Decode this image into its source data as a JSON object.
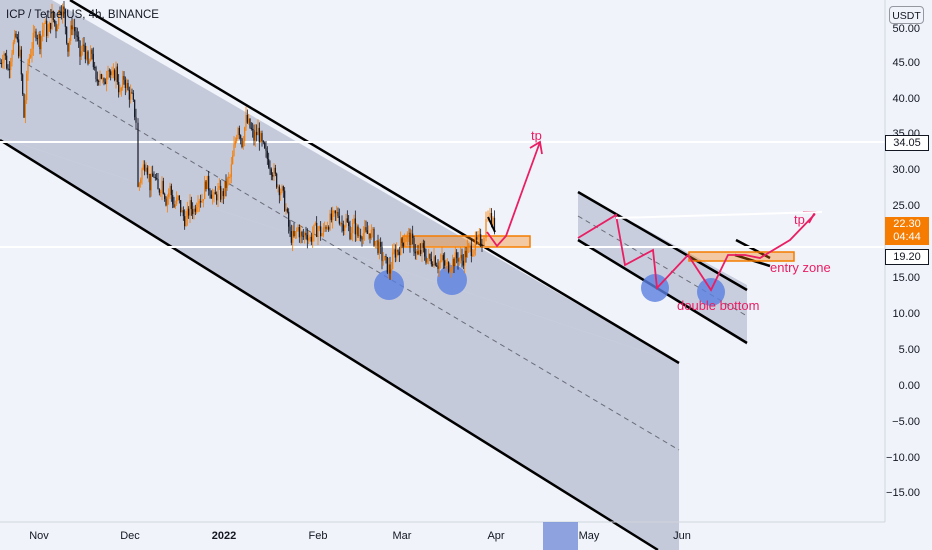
{
  "header": {
    "symbol": "ICP / TetherUS, 4h, BINANCE",
    "currency": "USDT"
  },
  "price_scale": {
    "ticks": [
      "50.00",
      "45.00",
      "40.00",
      "35.00",
      "30.00",
      "25.00",
      "20.00",
      "15.00",
      "10.00",
      "5.00",
      "0.00",
      "−5.00",
      "−10.00",
      "−15.00"
    ],
    "level_upper": "34.05",
    "current_price": "22.30",
    "countdown": "04:44",
    "level_lower": "19.20"
  },
  "time_scale": {
    "ticks": [
      "Nov",
      "Dec",
      "2022",
      "Feb",
      "Mar",
      "Apr",
      "May",
      "Jun"
    ]
  },
  "annotations": {
    "tp_main": "tp",
    "tp_projection": "tp",
    "double_bottom": "double bottom",
    "entry_zone": "entry zone"
  },
  "colors": {
    "background": "#f0f3fa",
    "channel_fill": "#a9afc6",
    "channel_line": "#000000",
    "level_line": "#ffffff",
    "up_candle": "#f57c00",
    "down_candle": "#131722",
    "zone": "#f57c00",
    "circle": "#5b7fe0",
    "path": "#e91e63",
    "current_tag": "#f57c00"
  },
  "chart_data": {
    "type": "candlestick",
    "symbol": "ICP/USDT",
    "interval": "4h",
    "y_range": [
      -18,
      52
    ],
    "horizontal_levels": [
      34.05,
      19.2
    ],
    "current_price": 22.3,
    "price_path": [
      [
        0,
        45.0
      ],
      [
        4,
        46.5
      ],
      [
        8,
        44.0
      ],
      [
        12,
        47.0
      ],
      [
        16,
        48.5
      ],
      [
        20,
        46.0
      ],
      [
        24,
        37.5
      ],
      [
        28,
        45.0
      ],
      [
        32,
        47.5
      ],
      [
        36,
        49.5
      ],
      [
        40,
        48.0
      ],
      [
        44,
        50.5
      ],
      [
        48,
        49.0
      ],
      [
        52,
        51.5
      ],
      [
        56,
        50.0
      ],
      [
        60,
        53.0
      ],
      [
        64,
        52.0
      ],
      [
        68,
        47.0
      ],
      [
        72,
        50.5
      ],
      [
        76,
        49.0
      ],
      [
        80,
        46.0
      ],
      [
        84,
        47.5
      ],
      [
        88,
        44.5
      ],
      [
        92,
        46.5
      ],
      [
        96,
        42.0
      ],
      [
        100,
        44.0
      ],
      [
        104,
        41.5
      ],
      [
        108,
        45.0
      ],
      [
        112,
        42.5
      ],
      [
        116,
        44.0
      ],
      [
        120,
        40.5
      ],
      [
        124,
        43.0
      ],
      [
        128,
        41.0
      ],
      [
        132,
        40.0
      ],
      [
        136,
        37.0
      ],
      [
        138,
        27.5
      ],
      [
        142,
        30.0
      ],
      [
        146,
        31.5
      ],
      [
        150,
        28.0
      ],
      [
        154,
        29.5
      ],
      [
        158,
        27.0
      ],
      [
        162,
        28.5
      ],
      [
        166,
        26.0
      ],
      [
        170,
        27.5
      ],
      [
        174,
        25.0
      ],
      [
        178,
        26.0
      ],
      [
        182,
        24.0
      ],
      [
        186,
        23.0
      ],
      [
        190,
        25.0
      ],
      [
        194,
        24.5
      ],
      [
        198,
        26.5
      ],
      [
        202,
        26.0
      ],
      [
        206,
        28.5
      ],
      [
        210,
        27.5
      ],
      [
        214,
        26.0
      ],
      [
        218,
        27.0
      ],
      [
        222,
        26.5
      ],
      [
        226,
        28.0
      ],
      [
        230,
        29.0
      ],
      [
        234,
        33.0
      ],
      [
        238,
        36.5
      ],
      [
        242,
        34.0
      ],
      [
        246,
        37.0
      ],
      [
        250,
        36.0
      ],
      [
        254,
        34.5
      ],
      [
        258,
        35.5
      ],
      [
        262,
        33.5
      ],
      [
        266,
        32.0
      ],
      [
        270,
        31.0
      ],
      [
        274,
        29.5
      ],
      [
        278,
        28.0
      ],
      [
        282,
        27.0
      ],
      [
        286,
        24.5
      ],
      [
        290,
        21.0
      ],
      [
        294,
        20.5
      ],
      [
        298,
        22.0
      ],
      [
        302,
        20.5
      ],
      [
        306,
        21.5
      ],
      [
        310,
        20.5
      ],
      [
        314,
        21.5
      ],
      [
        318,
        22.0
      ],
      [
        322,
        21.0
      ],
      [
        326,
        22.5
      ],
      [
        330,
        23.0
      ],
      [
        334,
        23.5
      ],
      [
        338,
        24.0
      ],
      [
        342,
        22.5
      ],
      [
        346,
        23.0
      ],
      [
        350,
        21.5
      ],
      [
        354,
        22.5
      ],
      [
        358,
        21.0
      ],
      [
        362,
        21.5
      ],
      [
        366,
        21.0
      ],
      [
        370,
        21.5
      ],
      [
        374,
        20.5
      ],
      [
        378,
        19.5
      ],
      [
        382,
        18.0
      ],
      [
        386,
        17.0
      ],
      [
        390,
        16.0
      ],
      [
        394,
        18.5
      ],
      [
        398,
        19.0
      ],
      [
        402,
        20.0
      ],
      [
        406,
        21.0
      ],
      [
        410,
        20.5
      ],
      [
        414,
        19.5
      ],
      [
        418,
        18.0
      ],
      [
        422,
        19.0
      ],
      [
        426,
        18.0
      ],
      [
        430,
        17.5
      ],
      [
        434,
        18.0
      ],
      [
        438,
        17.0
      ],
      [
        442,
        17.5
      ],
      [
        446,
        16.5
      ],
      [
        450,
        17.0
      ],
      [
        454,
        17.5
      ],
      [
        458,
        18.0
      ],
      [
        462,
        17.5
      ],
      [
        466,
        18.5
      ],
      [
        470,
        19.0
      ],
      [
        474,
        19.5
      ],
      [
        478,
        20.0
      ],
      [
        482,
        20.5
      ],
      [
        484,
        21.5
      ],
      [
        486,
        23.0
      ],
      [
        488,
        24.5
      ],
      [
        490,
        23.5
      ],
      [
        493,
        22.5
      ],
      [
        496,
        22.3
      ]
    ]
  }
}
